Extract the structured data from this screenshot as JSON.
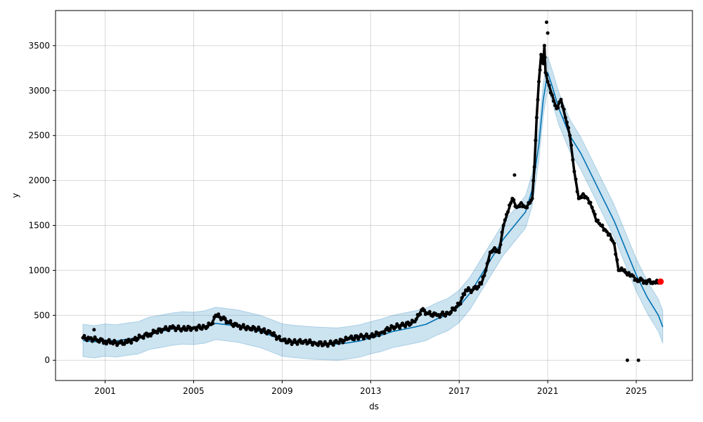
{
  "chart_data": {
    "type": "line",
    "xlabel": "ds",
    "ylabel": "y",
    "x_ticks": [
      "2001",
      "2005",
      "2009",
      "2013",
      "2017",
      "2021",
      "2025"
    ],
    "y_ticks": [
      "0",
      "500",
      "1000",
      "1500",
      "2000",
      "2500",
      "3000",
      "3500"
    ],
    "xlim": [
      1998.76,
      2027.54
    ],
    "ylim": [
      -225,
      3890
    ],
    "grid": true,
    "colors": {
      "forecast_line": "#0072B2",
      "uncertainty_band": "#0072B2",
      "observed_points": "#000000",
      "highlight_point": "#ff0000"
    },
    "series": [
      {
        "role": "forecast",
        "x": [
          2000.0,
          2000.5,
          2001.0,
          2001.5,
          2002.0,
          2002.5,
          2003.0,
          2003.5,
          2004.0,
          2004.5,
          2005.0,
          2005.5,
          2006.0,
          2006.5,
          2007.0,
          2007.5,
          2008.0,
          2008.5,
          2009.0,
          2009.5,
          2010.0,
          2010.5,
          2011.0,
          2011.5,
          2012.0,
          2012.5,
          2013.0,
          2013.5,
          2014.0,
          2014.5,
          2015.0,
          2015.5,
          2016.0,
          2016.5,
          2017.0,
          2017.5,
          2018.0,
          2018.5,
          2019.0,
          2019.5,
          2020.0,
          2020.3,
          2020.6,
          2020.8,
          2021.0,
          2021.2,
          2021.5,
          2022.0,
          2022.5,
          2023.0,
          2023.5,
          2024.0,
          2024.5,
          2025.0,
          2025.5,
          2026.0,
          2026.2
        ],
        "y": [
          220,
          205,
          225,
          215,
          235,
          250,
          300,
          320,
          345,
          360,
          355,
          370,
          410,
          395,
          380,
          350,
          320,
          275,
          225,
          210,
          200,
          190,
          185,
          180,
          195,
          215,
          250,
          280,
          320,
          345,
          370,
          400,
          460,
          510,
          600,
          750,
          950,
          1150,
          1350,
          1500,
          1650,
          1900,
          2400,
          2900,
          3200,
          3050,
          2800,
          2500,
          2300,
          2050,
          1800,
          1550,
          1250,
          950,
          700,
          500,
          370
        ],
        "lower": [
          40,
          25,
          45,
          35,
          55,
          70,
          120,
          140,
          165,
          180,
          175,
          190,
          230,
          215,
          200,
          170,
          140,
          95,
          45,
          30,
          20,
          10,
          5,
          0,
          15,
          35,
          70,
          100,
          140,
          165,
          190,
          220,
          280,
          330,
          420,
          570,
          770,
          970,
          1170,
          1320,
          1470,
          1720,
          2220,
          2720,
          3020,
          2870,
          2620,
          2320,
          2120,
          1870,
          1620,
          1370,
          1070,
          770,
          520,
          320,
          190
        ],
        "upper": [
          400,
          385,
          405,
          395,
          415,
          430,
          480,
          500,
          525,
          540,
          535,
          550,
          590,
          575,
          560,
          530,
          500,
          455,
          405,
          390,
          380,
          370,
          365,
          360,
          375,
          395,
          430,
          460,
          500,
          525,
          550,
          580,
          640,
          690,
          780,
          930,
          1130,
          1330,
          1530,
          1680,
          1830,
          2080,
          2580,
          3080,
          3380,
          3230,
          2980,
          2680,
          2480,
          2230,
          1980,
          1730,
          1430,
          1130,
          880,
          680,
          550
        ]
      },
      {
        "role": "observed",
        "x": [
          2000.0,
          2000.3,
          2000.6,
          2001.0,
          2001.3,
          2001.6,
          2002.0,
          2002.3,
          2002.6,
          2003.0,
          2003.3,
          2003.6,
          2004.0,
          2004.5,
          2005.0,
          2005.5,
          2005.8,
          2006.0,
          2006.3,
          2006.6,
          2007.0,
          2007.5,
          2008.0,
          2008.5,
          2009.0,
          2009.5,
          2010.0,
          2010.5,
          2011.0,
          2011.5,
          2012.0,
          2012.5,
          2013.0,
          2013.5,
          2014.0,
          2014.5,
          2015.0,
          2015.3,
          2015.6,
          2016.0,
          2016.5,
          2017.0,
          2017.3,
          2017.6,
          2018.0,
          2018.2,
          2018.4,
          2018.6,
          2018.8,
          2019.0,
          2019.2,
          2019.4,
          2019.6,
          2019.8,
          2020.0,
          2020.2,
          2020.3,
          2020.4,
          2020.5,
          2020.6,
          2020.7,
          2020.8,
          2020.85,
          2020.9,
          2021.0,
          2021.2,
          2021.4,
          2021.6,
          2021.8,
          2022.0,
          2022.2,
          2022.4,
          2022.6,
          2022.8,
          2023.0,
          2023.2,
          2023.4,
          2023.6,
          2023.8,
          2024.0,
          2024.2,
          2024.4,
          2024.6,
          2024.8,
          2025.0,
          2025.4,
          2025.8,
          2026.0
        ],
        "y": [
          250,
          240,
          230,
          210,
          200,
          190,
          200,
          230,
          260,
          290,
          320,
          340,
          360,
          350,
          360,
          370,
          400,
          500,
          470,
          420,
          380,
          360,
          340,
          300,
          220,
          200,
          210,
          190,
          180,
          200,
          240,
          260,
          270,
          310,
          370,
          390,
          430,
          560,
          520,
          500,
          520,
          620,
          780,
          780,
          850,
          1000,
          1200,
          1250,
          1200,
          1500,
          1650,
          1800,
          1700,
          1750,
          1700,
          1750,
          1800,
          2150,
          2700,
          3100,
          3400,
          3300,
          3500,
          3200,
          3100,
          2950,
          2800,
          2900,
          2700,
          2500,
          2100,
          1800,
          1850,
          1800,
          1700,
          1550,
          1500,
          1450,
          1400,
          1300,
          1000,
          1000,
          950,
          950,
          900,
          880,
          870,
          860
        ]
      },
      {
        "role": "outliers",
        "x": [
          2000.5,
          2019.5,
          2020.95,
          2021.0,
          2024.6,
          2025.1
        ],
        "y": [
          340,
          2060,
          3760,
          3640,
          0,
          0
        ]
      },
      {
        "role": "highlight",
        "x": [
          2026.1
        ],
        "y": [
          875
        ]
      }
    ]
  }
}
